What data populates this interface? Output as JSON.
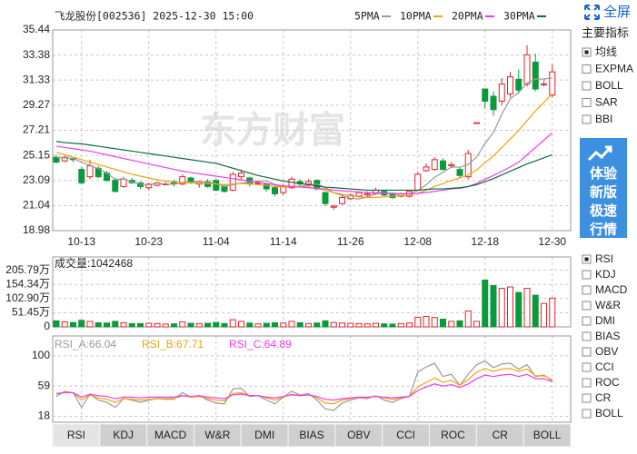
{
  "chart_data": [
    {
      "type": "candlestick",
      "title": "飞龙股份[002536] 2025-12-30 15:00",
      "watermark": "东方财富",
      "categories": [
        null,
        null,
        null,
        "10-13",
        null,
        null,
        null,
        null,
        null,
        null,
        null,
        "10-23",
        null,
        null,
        null,
        null,
        null,
        null,
        null,
        "11-04",
        null,
        null,
        null,
        null,
        null,
        null,
        null,
        "11-14",
        null,
        null,
        null,
        null,
        null,
        null,
        null,
        "11-26",
        null,
        null,
        null,
        null,
        null,
        null,
        null,
        "12-08",
        null,
        null,
        null,
        null,
        null,
        null,
        null,
        "12-18",
        null,
        null,
        null,
        null,
        null,
        null,
        null,
        "12-30"
      ],
      "open": [
        25.0,
        24.7,
        24.9,
        24.0,
        23.4,
        24.1,
        23.7,
        23.1,
        22.6,
        23.1,
        22.9,
        22.5,
        22.7,
        22.8,
        23.0,
        22.8,
        23.3,
        22.8,
        23.0,
        23.1,
        22.6,
        22.3,
        23.4,
        23.3,
        22.9,
        22.8,
        22.5,
        22.1,
        22.5,
        23.0,
        22.8,
        23.1,
        22.1,
        20.9,
        21.2,
        21.6,
        21.8,
        21.9,
        22.0,
        22.2,
        22.0,
        21.8,
        21.8,
        22.3,
        23.9,
        24.0,
        24.7,
        24.3,
        24.0,
        23.4,
        27.83,
        30.6,
        30.0,
        29.6,
        30.2,
        31.4,
        31.0,
        32.8,
        31.0,
        30.1
      ],
      "high": [
        25.2,
        25.1,
        25.0,
        24.2,
        24.8,
        24.3,
        23.9,
        23.3,
        23.4,
        23.3,
        23.0,
        22.9,
        23.0,
        23.0,
        23.1,
        23.6,
        23.4,
        23.1,
        23.2,
        23.2,
        22.8,
        23.8,
        24.0,
        23.4,
        23.1,
        22.9,
        22.7,
        22.8,
        23.4,
        23.2,
        23.2,
        23.2,
        22.2,
        21.1,
        21.9,
        22.0,
        22.2,
        22.2,
        22.5,
        22.3,
        22.1,
        22.1,
        22.3,
        23.8,
        24.5,
        25.0,
        24.9,
        24.6,
        24.2,
        25.6,
        27.83,
        30.6,
        30.4,
        31.5,
        32.0,
        32.2,
        34.2,
        33.5,
        31.3,
        32.6
      ],
      "low": [
        24.5,
        24.6,
        24.6,
        22.8,
        23.2,
        23.3,
        23.0,
        22.1,
        22.5,
        22.8,
        22.4,
        22.3,
        22.6,
        22.7,
        22.6,
        22.7,
        22.8,
        22.5,
        22.5,
        22.2,
        22.1,
        22.2,
        23.2,
        22.6,
        22.7,
        22.2,
        21.8,
        21.9,
        22.4,
        22.6,
        22.6,
        22.3,
        21.0,
        20.7,
        21.1,
        21.5,
        21.7,
        21.7,
        21.9,
        21.8,
        21.6,
        21.7,
        21.7,
        22.2,
        23.8,
        23.9,
        23.9,
        24.1,
        23.3,
        23.2,
        27.83,
        29.0,
        28.4,
        29.3,
        29.9,
        30.2,
        30.8,
        30.4,
        30.8,
        29.9
      ],
      "close": [
        24.6,
        25.0,
        24.8,
        22.9,
        24.3,
        23.4,
        23.1,
        22.2,
        23.2,
        22.9,
        22.6,
        22.8,
        22.9,
        22.8,
        22.8,
        23.4,
        22.9,
        23.0,
        22.6,
        22.3,
        22.2,
        23.6,
        23.7,
        22.8,
        22.9,
        22.4,
        22.0,
        22.6,
        23.2,
        22.8,
        23.0,
        22.4,
        21.2,
        21.0,
        21.7,
        21.9,
        22.1,
        22.0,
        22.3,
        21.9,
        21.7,
        22.0,
        22.2,
        23.6,
        24.2,
        24.8,
        24.0,
        24.4,
        23.5,
        25.3,
        27.83,
        29.6,
        28.9,
        31.0,
        31.6,
        30.5,
        33.4,
        30.6,
        31.0,
        32.0
      ],
      "up_color": "#e6212a",
      "down_color": "#0a9a3c",
      "ylim": [
        18.98,
        35.44
      ],
      "yticks": [
        35.44,
        33.38,
        31.33,
        29.27,
        27.21,
        25.15,
        23.09,
        21.04,
        18.98
      ],
      "grid": true,
      "series": [
        {
          "name": "5PMA",
          "color": "#9a9a9a",
          "values": [
            25.0,
            24.95,
            24.9,
            24.6,
            24.32,
            24.08,
            23.7,
            23.18,
            23.24,
            22.96,
            22.8,
            22.74,
            22.88,
            22.8,
            22.78,
            22.94,
            22.96,
            22.98,
            22.94,
            22.84,
            22.6,
            22.74,
            22.88,
            22.92,
            23.04,
            23.08,
            22.76,
            22.54,
            22.62,
            22.6,
            22.72,
            22.8,
            22.52,
            22.08,
            21.86,
            21.64,
            21.58,
            21.74,
            22.0,
            22.04,
            22.0,
            21.98,
            22.02,
            22.28,
            22.74,
            23.36,
            23.76,
            24.2,
            24.18,
            24.4,
            25.01,
            26.13,
            27.03,
            28.53,
            29.79,
            30.32,
            31.08,
            31.42,
            31.42,
            31.5
          ]
        },
        {
          "name": "10PMA",
          "color": "#f0a30a",
          "values": [
            25.4,
            25.2,
            25.0,
            24.8,
            24.6,
            24.4,
            24.2,
            24.0,
            23.8,
            23.6,
            23.45,
            23.3,
            23.15,
            23.05,
            22.95,
            22.9,
            22.9,
            22.85,
            22.85,
            22.8,
            22.75,
            22.8,
            22.85,
            22.8,
            22.75,
            22.7,
            22.6,
            22.55,
            22.6,
            22.6,
            22.55,
            22.45,
            22.3,
            22.1,
            21.95,
            21.85,
            21.75,
            21.7,
            21.7,
            21.75,
            21.8,
            21.85,
            21.9,
            22.05,
            22.3,
            22.6,
            22.85,
            23.1,
            23.3,
            23.55,
            23.95,
            24.55,
            25.1,
            25.8,
            26.5,
            27.2,
            28.0,
            28.8,
            29.5,
            30.2
          ]
        },
        {
          "name": "20PMA",
          "color": "#f03cf0",
          "values": [
            25.9,
            25.8,
            25.7,
            25.6,
            25.5,
            25.35,
            25.2,
            25.05,
            24.9,
            24.75,
            24.6,
            24.45,
            24.3,
            24.15,
            24.0,
            23.85,
            23.75,
            23.65,
            23.55,
            23.45,
            23.35,
            23.25,
            23.15,
            23.05,
            22.95,
            22.85,
            22.75,
            22.65,
            22.6,
            22.55,
            22.5,
            22.45,
            22.4,
            22.3,
            22.25,
            22.2,
            22.15,
            22.1,
            22.1,
            22.05,
            22.05,
            22.0,
            22.0,
            22.05,
            22.1,
            22.2,
            22.3,
            22.4,
            22.45,
            22.6,
            22.85,
            23.2,
            23.5,
            23.85,
            24.2,
            24.6,
            25.2,
            25.8,
            26.4,
            27.0
          ]
        },
        {
          "name": "30PMA",
          "color": "#0b6e3c",
          "values": [
            26.3,
            26.2,
            26.15,
            26.1,
            26.0,
            25.9,
            25.8,
            25.7,
            25.6,
            25.5,
            25.4,
            25.3,
            25.2,
            25.1,
            25.0,
            24.9,
            24.8,
            24.7,
            24.6,
            24.5,
            24.3,
            24.1,
            23.9,
            23.7,
            23.5,
            23.35,
            23.2,
            23.05,
            22.95,
            22.85,
            22.75,
            22.65,
            22.55,
            22.5,
            22.45,
            22.4,
            22.35,
            22.3,
            22.3,
            22.3,
            22.3,
            22.3,
            22.3,
            22.3,
            22.35,
            22.4,
            22.4,
            22.45,
            22.5,
            22.6,
            22.75,
            23.0,
            23.25,
            23.55,
            23.85,
            24.15,
            24.45,
            24.7,
            24.95,
            25.2
          ]
        }
      ]
    },
    {
      "type": "bar",
      "title": "成交量:1042468",
      "values": [
        22,
        18,
        16,
        24,
        20,
        15,
        14,
        20,
        15,
        12,
        12,
        13,
        12,
        10,
        11,
        18,
        13,
        12,
        13,
        16,
        12,
        26,
        20,
        14,
        11,
        13,
        15,
        14,
        20,
        15,
        12,
        14,
        22,
        16,
        14,
        13,
        12,
        11,
        13,
        11,
        10,
        12,
        14,
        35,
        38,
        34,
        28,
        20,
        22,
        58,
        20,
        170,
        150,
        140,
        145,
        125,
        140,
        115,
        85,
        104.2468
      ],
      "ylim": [
        0,
        254
      ],
      "yticks": [
        {
          "value": 205.79,
          "label": "205.79万"
        },
        {
          "value": 154.34,
          "label": "154.34万"
        },
        {
          "value": 102.9,
          "label": "102.90万"
        },
        {
          "value": 51.45,
          "label": "51.45万"
        },
        0
      ]
    },
    {
      "type": "line",
      "series": [
        {
          "name": "RSI_A:66.04",
          "color": "#9a9a9a",
          "values": [
            45,
            52,
            50,
            30,
            48,
            40,
            37,
            30,
            42,
            40,
            37,
            40,
            42,
            41,
            41,
            50,
            44,
            46,
            40,
            36,
            35,
            55,
            56,
            45,
            46,
            40,
            35,
            44,
            52,
            47,
            49,
            40,
            28,
            26,
            36,
            40,
            43,
            42,
            46,
            40,
            37,
            42,
            45,
            78,
            85,
            90,
            72,
            75,
            60,
            75,
            88,
            93,
            84,
            89,
            90,
            82,
            88,
            72,
            74,
            66.04
          ]
        },
        {
          "name": "RSI_B:67.71",
          "color": "#f0a30a",
          "values": [
            48,
            51,
            50,
            40,
            47,
            43,
            41,
            37,
            42,
            41,
            40,
            41,
            42,
            42,
            42,
            46,
            44,
            45,
            42,
            40,
            39,
            49,
            50,
            46,
            46,
            43,
            40,
            44,
            48,
            46,
            47,
            43,
            36,
            35,
            40,
            42,
            44,
            43,
            45,
            43,
            41,
            43,
            45,
            58,
            64,
            70,
            64,
            67,
            60,
            68,
            78,
            83,
            79,
            82,
            83,
            79,
            82,
            73,
            73,
            67.71
          ]
        },
        {
          "name": "RSI_C:64.89",
          "color": "#f03cf0",
          "values": [
            49,
            50,
            50,
            44,
            48,
            46,
            45,
            42,
            44,
            44,
            43,
            44,
            44,
            44,
            44,
            46,
            45,
            46,
            44,
            43,
            42,
            47,
            48,
            46,
            46,
            44,
            43,
            45,
            47,
            46,
            47,
            45,
            41,
            40,
            42,
            43,
            44,
            44,
            45,
            44,
            43,
            44,
            45,
            53,
            58,
            62,
            59,
            61,
            57,
            62,
            69,
            74,
            72,
            74,
            75,
            72,
            75,
            69,
            69,
            64.89
          ]
        }
      ],
      "ylim": [
        10,
        127
      ],
      "yticks": [
        100,
        59,
        18
      ]
    }
  ],
  "toolbar": {
    "fullscreen": "全屏",
    "main_title": "主要指标",
    "main_items": [
      {
        "label": "均线",
        "checked": true
      },
      {
        "label": "EXPMA",
        "checked": false
      },
      {
        "label": "BOLL",
        "checked": false
      },
      {
        "label": "SAR",
        "checked": false
      },
      {
        "label": "BBI",
        "checked": false
      }
    ],
    "promo": [
      "体验",
      "新版",
      "极速",
      "行情"
    ],
    "sub_items": [
      {
        "label": "RSI",
        "checked": true
      },
      {
        "label": "KDJ",
        "checked": false
      },
      {
        "label": "MACD",
        "checked": false
      },
      {
        "label": "W&R",
        "checked": false
      },
      {
        "label": "DMI",
        "checked": false
      },
      {
        "label": "BIAS",
        "checked": false
      },
      {
        "label": "OBV",
        "checked": false
      },
      {
        "label": "CCI",
        "checked": false
      },
      {
        "label": "ROC",
        "checked": false
      },
      {
        "label": "CR",
        "checked": false
      },
      {
        "label": "BOLL",
        "checked": false
      }
    ],
    "tabs": [
      "RSI",
      "KDJ",
      "MACD",
      "W&R",
      "DMI",
      "BIAS",
      "OBV",
      "CCI",
      "ROC",
      "CR",
      "BOLL"
    ],
    "active_tab": 0
  }
}
